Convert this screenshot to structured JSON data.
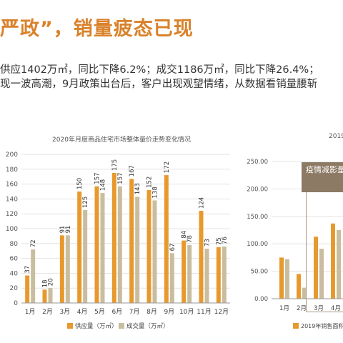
{
  "headline": "严政”，销量疲态已现",
  "paragraph": {
    "line1": "供应1402万㎡，同比下降6.2%；成交1186万㎡，同比下降26.4%；",
    "line2": "现一波高潮，9月政策出台后，客户出现观望情绪，从数据看销量腰斩"
  },
  "colors": {
    "supply": "#e8992e",
    "sales": "#c9bd9f",
    "headline": "#d9822b",
    "grid": "#e3e3e3"
  },
  "chart_data": [
    {
      "type": "bar",
      "title": "2020年月度商品住宅市场整体量价走势变化情况",
      "categories": [
        "1月",
        "2月",
        "3月",
        "4月",
        "5月",
        "6月",
        "7月",
        "8月",
        "9月",
        "10月",
        "11月",
        "12月"
      ],
      "series": [
        {
          "name": "供应量（万㎡）",
          "values": [
            37,
            18,
            91,
            150,
            157,
            175,
            167,
            152,
            172,
            84,
            124,
            75
          ]
        },
        {
          "name": "成交量（万㎡）",
          "values": [
            72,
            20,
            91,
            125,
            148,
            157,
            143,
            138,
            67,
            78,
            73,
            76
          ]
        }
      ],
      "yticks": [
        "0",
        "20",
        "40",
        "60",
        "80",
        "100",
        "120",
        "140",
        "160",
        "180",
        "200"
      ],
      "ylim": [
        0,
        200
      ],
      "legend": "bottom",
      "grid": true
    },
    {
      "type": "bar",
      "title": "2019",
      "categories": [
        "1月",
        "2月",
        "3月",
        "4月"
      ],
      "series": [
        {
          "name": "2019年销售面积",
          "values": [
            75,
            45,
            113,
            137
          ]
        },
        {
          "name": "",
          "values": [
            72,
            20,
            91,
            125
          ]
        }
      ],
      "yticks": [
        "0.00",
        "50.00",
        "100.00",
        "150.00",
        "200.00",
        "250.00"
      ],
      "ylim": [
        0,
        250
      ],
      "annotation": "疫情减影量迅速"
    }
  ]
}
